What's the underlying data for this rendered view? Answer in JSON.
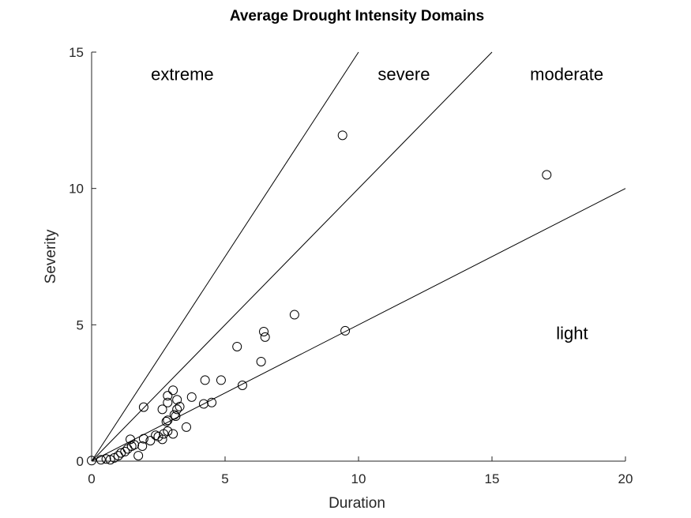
{
  "chart_data": {
    "type": "scatter",
    "title": "Average Drought Intensity Domains",
    "xlabel": "Duration",
    "ylabel": "Severity",
    "xlim": [
      0,
      20
    ],
    "ylim": [
      0,
      15
    ],
    "xticks": [
      0,
      5,
      10,
      15,
      20
    ],
    "yticks": [
      0,
      5,
      10,
      15
    ],
    "grid": false,
    "boundaries": [
      {
        "slope": 1.5,
        "x_end": 10
      },
      {
        "slope": 1.0,
        "x_end": 15
      },
      {
        "slope": 0.5,
        "x_end": 20
      }
    ],
    "regions": [
      {
        "label": "extreme",
        "x": 3.4,
        "y": 14.2
      },
      {
        "label": "severe",
        "x": 11.7,
        "y": 14.2
      },
      {
        "label": "moderate",
        "x": 17.8,
        "y": 14.2
      },
      {
        "label": "light",
        "x": 18.0,
        "y": 4.7
      }
    ],
    "points": [
      [
        0.0,
        0.02
      ],
      [
        0.35,
        0.05
      ],
      [
        0.55,
        0.08
      ],
      [
        0.7,
        0.05
      ],
      [
        0.85,
        0.12
      ],
      [
        1.0,
        0.2
      ],
      [
        1.1,
        0.3
      ],
      [
        1.25,
        0.35
      ],
      [
        1.35,
        0.45
      ],
      [
        1.5,
        0.55
      ],
      [
        1.6,
        0.6
      ],
      [
        1.45,
        0.8
      ],
      [
        1.75,
        0.2
      ],
      [
        1.9,
        0.55
      ],
      [
        1.95,
        0.82
      ],
      [
        2.2,
        0.75
      ],
      [
        2.4,
        0.95
      ],
      [
        2.5,
        0.9
      ],
      [
        2.65,
        0.8
      ],
      [
        2.7,
        1.0
      ],
      [
        2.85,
        1.1
      ],
      [
        2.8,
        1.45
      ],
      [
        2.85,
        1.5
      ],
      [
        3.05,
        1.0
      ],
      [
        1.95,
        1.98
      ],
      [
        2.65,
        1.9
      ],
      [
        2.85,
        2.15
      ],
      [
        2.85,
        2.4
      ],
      [
        3.05,
        2.6
      ],
      [
        3.1,
        1.7
      ],
      [
        3.15,
        1.65
      ],
      [
        3.2,
        1.9
      ],
      [
        3.2,
        2.25
      ],
      [
        3.3,
        2.0
      ],
      [
        3.55,
        1.25
      ],
      [
        3.75,
        2.35
      ],
      [
        4.2,
        2.1
      ],
      [
        4.25,
        2.97
      ],
      [
        4.5,
        2.15
      ],
      [
        4.85,
        2.97
      ],
      [
        5.45,
        4.2
      ],
      [
        5.65,
        2.78
      ],
      [
        6.35,
        3.65
      ],
      [
        6.45,
        4.75
      ],
      [
        6.5,
        4.55
      ],
      [
        7.6,
        5.37
      ],
      [
        9.4,
        11.95
      ],
      [
        9.5,
        4.78
      ],
      [
        17.05,
        10.5
      ]
    ]
  }
}
